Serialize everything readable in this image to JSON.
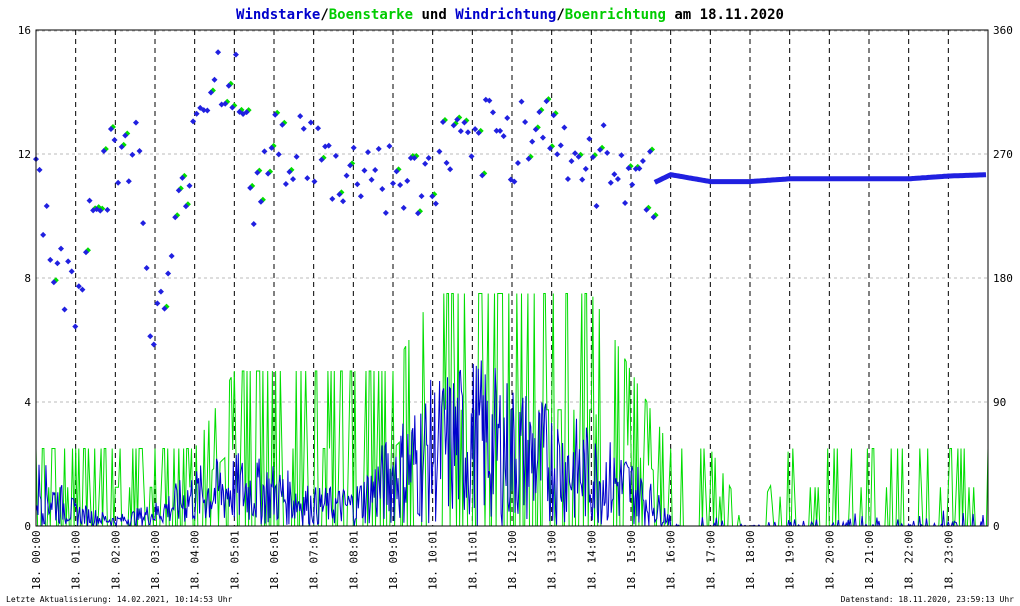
{
  "title": {
    "parts": [
      {
        "text": "Windstarke",
        "color": "#0000cc"
      },
      {
        "text": "/",
        "color": "#000000"
      },
      {
        "text": "Boenstarke",
        "color": "#00cc00"
      },
      {
        "text": " und ",
        "color": "#000000"
      },
      {
        "text": "Windrichtung",
        "color": "#0000cc"
      },
      {
        "text": "/",
        "color": "#000000"
      },
      {
        "text": "Boenrichtung",
        "color": "#00cc00"
      },
      {
        "text": " am 18.11.2020",
        "color": "#000000"
      }
    ]
  },
  "footer": {
    "left": "Letzte Aktualisierung: 14.02.2021, 10:14:53 Uhr",
    "right": "Datenstand: 18.11.2020, 23:59:13 Uhr"
  },
  "colors": {
    "wind": "#0000cc",
    "gust": "#00dd00",
    "direction": "#2020e0",
    "gust_direction": "#00dd00",
    "grid": "#bbbbbb",
    "hour_grid": "#000000"
  },
  "chart_data": {
    "type": "line",
    "x_range": [
      "00:00",
      "24:00"
    ],
    "y_left": {
      "range": [
        0,
        16
      ],
      "ticks": [
        "0",
        "4",
        "8",
        "12",
        "16"
      ]
    },
    "y_right": {
      "range": [
        0,
        360
      ],
      "ticks": [
        "0",
        "90",
        "180",
        "270",
        "360"
      ]
    },
    "x_ticks": [
      "18. 00:00",
      "18. 01:00",
      "18. 02:00",
      "18. 03:00",
      "18. 04:00",
      "18. 05:01",
      "18. 06:01",
      "18. 07:01",
      "18. 08:01",
      "18. 09:01",
      "18. 10:01",
      "18. 11:01",
      "18. 12:00",
      "18. 13:00",
      "18. 14:00",
      "18. 15:00",
      "18. 16:00",
      "18. 17:00",
      "18. 18:00",
      "18. 19:00",
      "18. 20:00",
      "18. 21:00",
      "18. 22:00",
      "18. 23:00"
    ],
    "series": [
      {
        "kind": "speed",
        "color": "#0000cc",
        "x": [
          0,
          1,
          2,
          3,
          4,
          5,
          6,
          7,
          8,
          9,
          10,
          11,
          12,
          13,
          14,
          15,
          16,
          17,
          18,
          19,
          20,
          21,
          22,
          23,
          24
        ],
        "y": [
          1.5,
          0.5,
          0.2,
          0.5,
          1.2,
          1.5,
          1.3,
          0.8,
          0.8,
          2.0,
          3.0,
          3.5,
          3.0,
          2.5,
          2.0,
          1.5,
          0.3,
          0.2,
          0,
          0.2,
          0.2,
          0.3,
          0.1,
          0.5,
          0.2
        ]
      },
      {
        "kind": "gust",
        "color": "#00dd00",
        "x": [
          0,
          1,
          2,
          3,
          4,
          5,
          6,
          7,
          8,
          9,
          10,
          11,
          12,
          13,
          14,
          15,
          16,
          17,
          18,
          19,
          20,
          21,
          22,
          23,
          24
        ],
        "y": [
          2.5,
          2.5,
          2.5,
          2.5,
          2.5,
          5.0,
          5.0,
          5.0,
          5.0,
          5.0,
          7.5,
          7.5,
          7.5,
          7.5,
          7.5,
          5.0,
          2.5,
          2.5,
          0,
          2.5,
          2.5,
          2.5,
          2.5,
          2.5,
          2.5
        ]
      },
      {
        "kind": "direction",
        "color": "#2020e0",
        "x": [
          0,
          0.5,
          1,
          1.5,
          2,
          2.5,
          3,
          3.5,
          4,
          4.5,
          5,
          5.5,
          6,
          6.5,
          7,
          7.5,
          8,
          8.5,
          9,
          9.5,
          10,
          10.5,
          11,
          11.5,
          12,
          12.5,
          13,
          13.5,
          14,
          14.5,
          15,
          15.5,
          16,
          17,
          18,
          19,
          20,
          21,
          22,
          23,
          24
        ],
        "y": [
          270,
          180,
          170,
          250,
          265,
          285,
          130,
          200,
          300,
          330,
          325,
          240,
          270,
          280,
          270,
          255,
          255,
          265,
          250,
          245,
          255,
          280,
          260,
          290,
          275,
          300,
          285,
          275,
          250,
          270,
          260,
          248,
          255,
          250,
          250,
          252,
          252,
          252,
          252,
          254,
          255
        ]
      }
    ]
  }
}
